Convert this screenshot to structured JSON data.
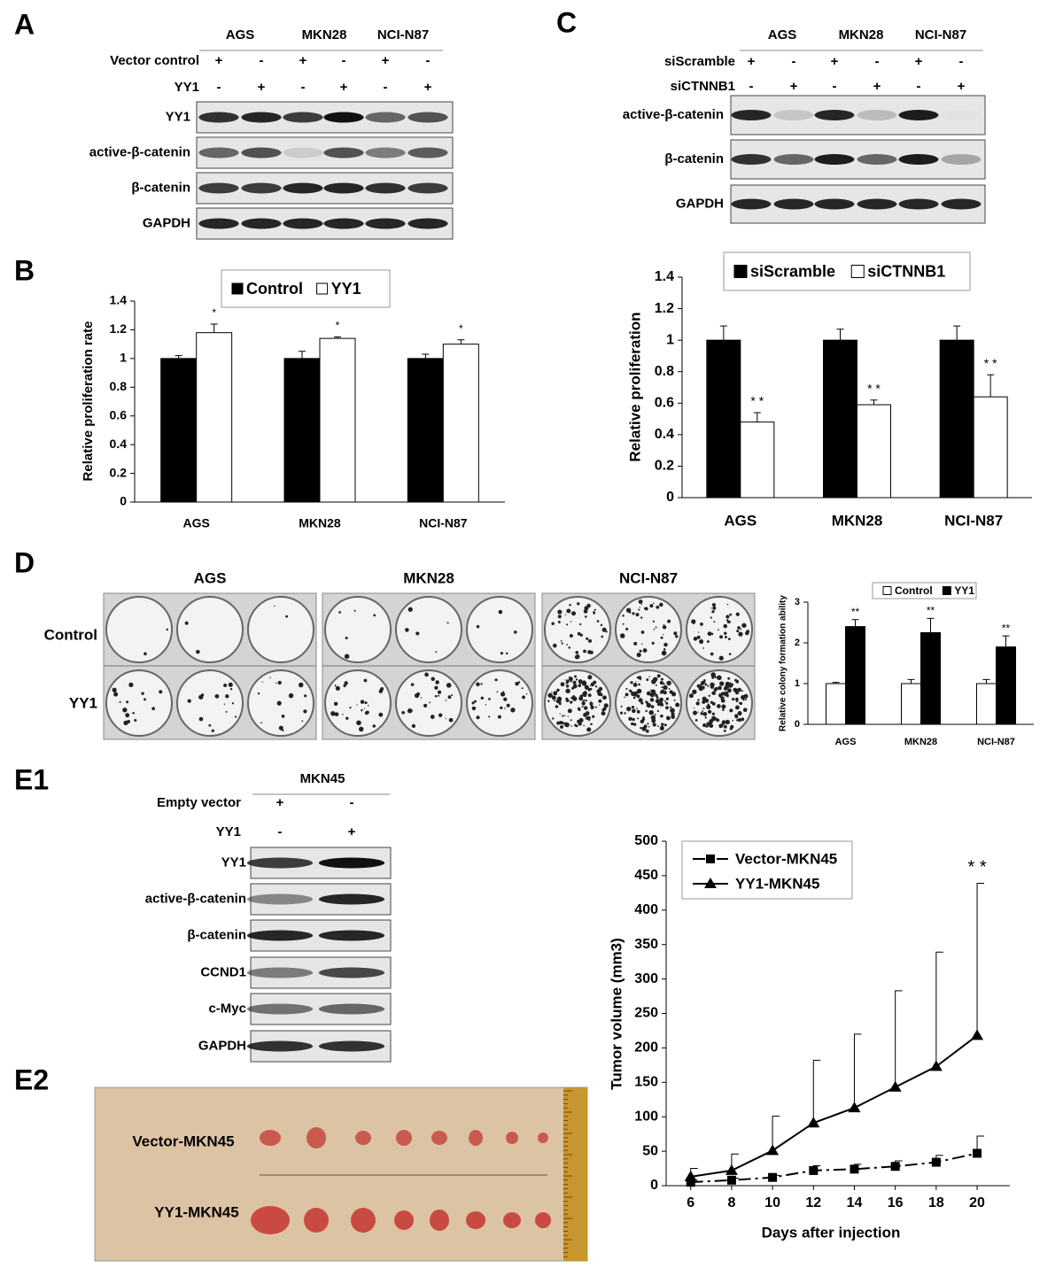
{
  "panel_labels": [
    "A",
    "B",
    "C",
    "D",
    "E1",
    "E2"
  ],
  "blots": [
    {
      "columns": [
        "AGS",
        "MKN28",
        "NCI-N87"
      ],
      "conditions": [
        {
          "name": "Vector control",
          "signs": [
            "+",
            "-",
            "+",
            "-",
            "+",
            "-"
          ]
        },
        {
          "name": "YY1",
          "signs": [
            "-",
            "+",
            "-",
            "+",
            "-",
            "+"
          ]
        }
      ],
      "rows": [
        "YY1",
        "active-β-catenin",
        "β-catenin",
        "GAPDH"
      ]
    },
    {
      "columns": [
        "AGS",
        "MKN28",
        "NCI-N87"
      ],
      "conditions": [
        {
          "name": "siScramble",
          "signs": [
            "+",
            "-",
            "+",
            "-",
            "+",
            "-"
          ]
        },
        {
          "name": "siCTNNB1",
          "signs": [
            "-",
            "+",
            "-",
            "+",
            "-",
            "+"
          ]
        }
      ],
      "rows": [
        "active-β-catenin",
        "β-catenin",
        "GAPDH"
      ]
    },
    {
      "columns": [
        "MKN45"
      ],
      "conditions": [
        {
          "name": "Empty vector",
          "signs": [
            "+",
            "-"
          ]
        },
        {
          "name": "YY1",
          "signs": [
            "-",
            "+"
          ]
        }
      ],
      "rows": [
        "YY1",
        "active-β-catenin",
        "β-catenin",
        "CCND1",
        "c-Myc",
        "GAPDH"
      ]
    }
  ],
  "plates": {
    "columns": [
      "AGS",
      "MKN28",
      "NCI-N87"
    ],
    "rows": [
      "Control",
      "YY1"
    ]
  },
  "tumor_photo": {
    "rows": [
      "Vector-MKN45",
      "YY1-MKN45"
    ]
  },
  "chart_data": [
    {
      "type": "bar",
      "y_label": "Relative proliferation rate",
      "categories": [
        "AGS",
        "MKN28",
        "NCI-N87"
      ],
      "series": [
        {
          "name": "Control",
          "color": "#000000",
          "values": [
            1,
            1,
            1
          ],
          "errors": [
            0.02,
            0.05,
            0.03
          ]
        },
        {
          "name": "YY1",
          "color": "#ffffff",
          "values": [
            1.18,
            1.14,
            1.1
          ],
          "errors": [
            0.06,
            0.01,
            0.03
          ],
          "annotations": [
            "*",
            "*",
            "*"
          ]
        }
      ],
      "ylim": [
        0,
        1.4
      ],
      "yticks": [
        0,
        0.2,
        0.4,
        0.6,
        0.8,
        1,
        1.2,
        1.4
      ]
    },
    {
      "type": "bar",
      "y_label": "Relative proliferation",
      "categories": [
        "AGS",
        "MKN28",
        "NCI-N87"
      ],
      "series": [
        {
          "name": "siScramble",
          "color": "#000000",
          "values": [
            1,
            1,
            1
          ],
          "errors": [
            0.09,
            0.07,
            0.09
          ]
        },
        {
          "name": "siCTNNB1",
          "color": "#ffffff",
          "values": [
            0.48,
            0.59,
            0.64
          ],
          "errors": [
            0.06,
            0.03,
            0.14
          ],
          "annotations": [
            "* *",
            "* *",
            "* *"
          ]
        }
      ],
      "ylim": [
        0,
        1.4
      ],
      "yticks": [
        0,
        0.2,
        0.4,
        0.6,
        0.8,
        1,
        1.2,
        1.4
      ]
    },
    {
      "type": "bar",
      "y_label": "Relative colony formation ability",
      "categories": [
        "AGS",
        "MKN28",
        "NCI-N87"
      ],
      "series": [
        {
          "name": "Control",
          "color": "#ffffff",
          "values": [
            1,
            1,
            1
          ],
          "errors": [
            0.03,
            0.1,
            0.1
          ]
        },
        {
          "name": "YY1",
          "color": "#000000",
          "values": [
            2.4,
            2.25,
            1.9
          ],
          "errors": [
            0.17,
            0.35,
            0.27
          ],
          "annotations": [
            "**",
            "**",
            "**"
          ]
        }
      ],
      "ylim": [
        0,
        3
      ],
      "yticks": [
        0,
        1,
        2,
        3
      ]
    },
    {
      "type": "line",
      "x_label": "Days after injection",
      "y_label": "Tumor volume (mm3)",
      "x": [
        6,
        8,
        10,
        12,
        14,
        16,
        18,
        20
      ],
      "series": [
        {
          "name": "Vector-MKN45",
          "color": "#000000",
          "marker": "square",
          "linestyle": "dashdot",
          "values": [
            5,
            8,
            12,
            22,
            24,
            28,
            34,
            47
          ],
          "errors": [
            3,
            3,
            3,
            7,
            7,
            8,
            10,
            25
          ]
        },
        {
          "name": "YY1-MKN45",
          "color": "#000000",
          "marker": "triangle",
          "linestyle": "solid",
          "values": [
            13,
            22,
            51,
            91,
            113,
            143,
            173,
            218
          ],
          "errors": [
            12,
            24,
            50,
            91,
            107,
            140,
            166,
            221
          ],
          "annotations": [
            null,
            null,
            null,
            null,
            null,
            null,
            null,
            "* *"
          ]
        }
      ],
      "xlim": [
        4.8,
        21.6
      ],
      "xticks": [
        6,
        8,
        10,
        12,
        14,
        16,
        18,
        20
      ],
      "ylim": [
        0,
        500
      ],
      "yticks": [
        0,
        50,
        100,
        150,
        200,
        250,
        300,
        350,
        400,
        450,
        500
      ]
    }
  ]
}
